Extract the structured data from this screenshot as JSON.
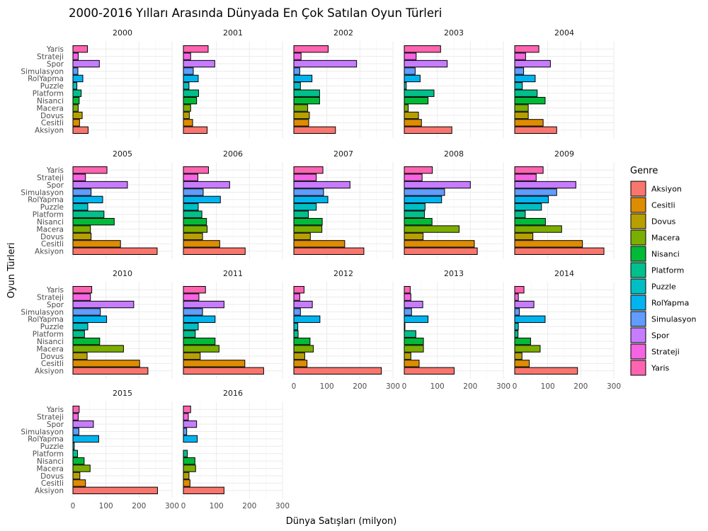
{
  "chart_data": {
    "type": "bar",
    "orientation": "horizontal",
    "facet_by": "year",
    "title": "2000-2016 Yılları Arasında Dünyada En Çok Satılan Oyun Türleri",
    "xlabel": "Dünya Satışları (milyon)",
    "ylabel": "Oyun Türleri",
    "xlim": [
      0,
      300
    ],
    "xticks": [
      0,
      100,
      200,
      300
    ],
    "grid": true,
    "legend_title": "Genre",
    "legend_position": "right",
    "categories": [
      "Aksiyon",
      "Cesitli",
      "Dovus",
      "Macera",
      "Nisanci",
      "Platform",
      "Puzzle",
      "RolYapma",
      "Simulasyon",
      "Spor",
      "Strateji",
      "Yaris"
    ],
    "colors": [
      "#F8766D",
      "#DE8C00",
      "#B79F00",
      "#7CAE00",
      "#00BA38",
      "#00C08B",
      "#00BFC4",
      "#00B4F0",
      "#619CFF",
      "#C77CFF",
      "#F564E3",
      "#FF64B0"
    ],
    "facets": [
      {
        "label": "2000",
        "values": [
          46,
          20,
          28,
          16,
          19,
          25,
          12,
          30,
          15,
          80,
          16,
          44
        ]
      },
      {
        "label": "2001",
        "values": [
          72,
          28,
          18,
          22,
          40,
          46,
          17,
          45,
          30,
          95,
          22,
          75
        ]
      },
      {
        "label": "2002",
        "values": [
          126,
          45,
          47,
          42,
          78,
          78,
          20,
          55,
          18,
          190,
          22,
          104
        ]
      },
      {
        "label": "2003",
        "values": [
          144,
          52,
          43,
          12,
          72,
          90,
          6,
          48,
          33,
          130,
          36,
          110
        ]
      },
      {
        "label": "2004",
        "values": [
          127,
          86,
          41,
          41,
          92,
          68,
          23,
          62,
          27,
          108,
          33,
          73
        ]
      },
      {
        "label": "2005",
        "values": [
          255,
          144,
          55,
          53,
          125,
          94,
          45,
          90,
          55,
          165,
          38,
          103
        ]
      },
      {
        "label": "2006",
        "values": [
          187,
          110,
          58,
          72,
          70,
          56,
          45,
          112,
          60,
          140,
          44,
          76
        ]
      },
      {
        "label": "2007",
        "values": [
          212,
          154,
          50,
          85,
          86,
          44,
          68,
          103,
          90,
          170,
          68,
          88
        ]
      },
      {
        "label": "2008",
        "values": [
          221,
          212,
          57,
          166,
          84,
          61,
          63,
          113,
          122,
          200,
          54,
          85
        ]
      },
      {
        "label": "2009",
        "values": [
          270,
          205,
          55,
          142,
          93,
          32,
          81,
          102,
          127,
          185,
          65,
          86
        ]
      },
      {
        "label": "2010",
        "values": [
          227,
          202,
          43,
          153,
          81,
          35,
          45,
          102,
          83,
          184,
          53,
          57
        ]
      },
      {
        "label": "2011",
        "values": [
          243,
          186,
          51,
          108,
          96,
          36,
          45,
          96,
          58,
          123,
          47,
          67
        ]
      },
      {
        "label": "2012",
        "values": [
          265,
          40,
          33,
          59,
          49,
          13,
          12,
          79,
          20,
          56,
          18,
          31
        ]
      },
      {
        "label": "2013",
        "values": [
          151,
          45,
          20,
          58,
          58,
          35,
          2,
          72,
          22,
          56,
          20,
          18
        ]
      },
      {
        "label": "2014",
        "values": [
          190,
          44,
          22,
          77,
          48,
          10,
          11,
          92,
          14,
          58,
          11,
          28
        ]
      },
      {
        "label": "2015",
        "values": [
          256,
          38,
          21,
          52,
          34,
          14,
          4,
          78,
          18,
          62,
          16,
          19
        ]
      },
      {
        "label": "2016",
        "values": [
          123,
          20,
          17,
          37,
          35,
          12,
          0,
          42,
          10,
          40,
          15,
          22
        ]
      }
    ]
  }
}
